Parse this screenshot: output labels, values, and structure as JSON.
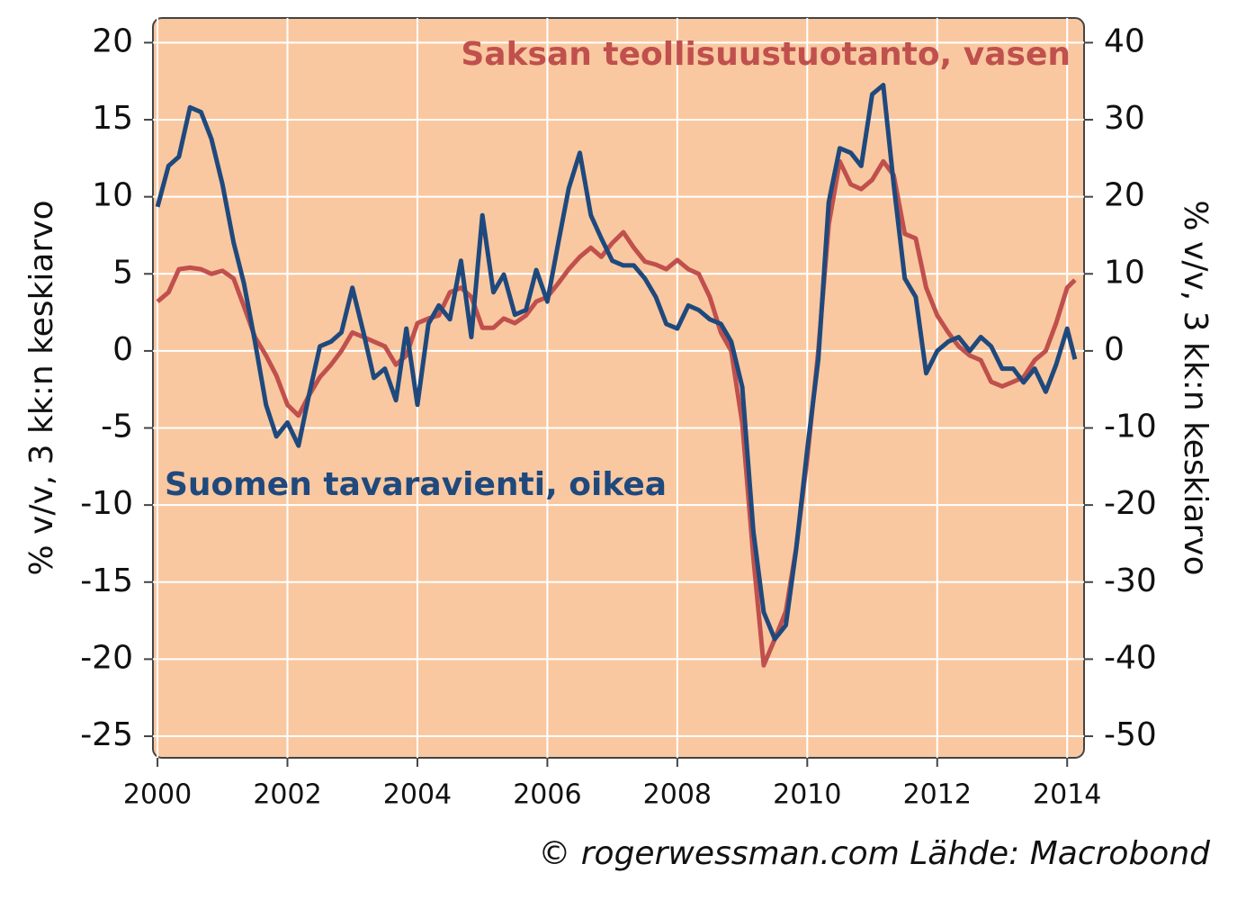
{
  "chart_data": {
    "type": "line",
    "y_label": "% v/v, 3 kk:n keskiarvo",
    "y2_label": "% v/v, 3 kk:n keskiarvo",
    "source": "© rogerwessman.com Lähde: Macrobond",
    "xlim": [
      1999.93,
      2014.26
    ],
    "xticks": [
      2000,
      2002,
      2004,
      2006,
      2008,
      2010,
      2012,
      2014
    ],
    "ylim": [
      -26.4,
      21.6
    ],
    "yticks": [
      20,
      15,
      10,
      5,
      0,
      -5,
      -10,
      -15,
      -20,
      -25
    ],
    "y2lim": [
      -52.8,
      43.2
    ],
    "y2ticks": [
      40,
      30,
      20,
      10,
      0,
      -10,
      -20,
      -30,
      -40,
      -50
    ],
    "grid": true,
    "background": "#f9c8a0",
    "x": [
      2000,
      2000.17,
      2000.33,
      2000.5,
      2000.67,
      2000.83,
      2001,
      2001.17,
      2001.33,
      2001.5,
      2001.67,
      2001.83,
      2002,
      2002.17,
      2002.33,
      2002.5,
      2002.67,
      2002.83,
      2003,
      2003.17,
      2003.33,
      2003.5,
      2003.67,
      2003.83,
      2004,
      2004.17,
      2004.33,
      2004.5,
      2004.67,
      2004.83,
      2005,
      2005.17,
      2005.33,
      2005.5,
      2005.67,
      2005.83,
      2006,
      2006.17,
      2006.33,
      2006.5,
      2006.67,
      2006.83,
      2007,
      2007.17,
      2007.33,
      2007.5,
      2007.67,
      2007.83,
      2008,
      2008.17,
      2008.33,
      2008.5,
      2008.67,
      2008.83,
      2009,
      2009.17,
      2009.33,
      2009.5,
      2009.67,
      2009.83,
      2010,
      2010.17,
      2010.33,
      2010.5,
      2010.67,
      2010.83,
      2011,
      2011.17,
      2011.33,
      2011.5,
      2011.67,
      2011.83,
      2012,
      2012.17,
      2012.33,
      2012.5,
      2012.67,
      2012.83,
      2013,
      2013.17,
      2013.33,
      2013.5,
      2013.67,
      2013.83,
      2014,
      2014.12
    ],
    "series": [
      {
        "name": "Saksan teollisuustuotanto, vasen",
        "color": "#c0504d",
        "axis": "y",
        "values": [
          3.2,
          3.8,
          5.3,
          5.4,
          5.3,
          5.0,
          5.2,
          4.7,
          2.9,
          0.9,
          -0.3,
          -1.6,
          -3.5,
          -4.2,
          -2.9,
          -1.7,
          -0.9,
          0.0,
          1.2,
          0.9,
          0.6,
          0.3,
          -0.9,
          -0.3,
          1.8,
          2.1,
          2.3,
          3.8,
          4.1,
          3.5,
          1.5,
          1.5,
          2.1,
          1.8,
          2.3,
          3.2,
          3.5,
          4.4,
          5.3,
          6.1,
          6.7,
          6.1,
          7.0,
          7.7,
          6.7,
          5.8,
          5.6,
          5.3,
          5.9,
          5.3,
          5.0,
          3.5,
          1.2,
          0.0,
          -4.7,
          -13.4,
          -20.4,
          -18.7,
          -16.9,
          -12.8,
          -7.0,
          0.0,
          8.2,
          12.3,
          10.8,
          10.5,
          11.1,
          12.3,
          11.4,
          7.6,
          7.3,
          4.1,
          2.3,
          1.2,
          0.3,
          -0.3,
          -0.6,
          -2.0,
          -2.3,
          -2.0,
          -1.7,
          -0.6,
          0.0,
          1.8,
          4.1,
          4.6
        ]
      },
      {
        "name": "Suomen tavaravienti, oikea",
        "color": "#1f497d",
        "axis": "y2",
        "values": [
          18.7,
          24.0,
          25.2,
          31.6,
          31.0,
          27.5,
          21.6,
          14.1,
          8.8,
          1.2,
          -7.0,
          -11.1,
          -9.3,
          -12.3,
          -5.8,
          0.6,
          1.2,
          2.4,
          8.2,
          2.4,
          -3.5,
          -2.3,
          -6.4,
          2.9,
          -7.0,
          3.5,
          5.9,
          4.1,
          11.7,
          1.8,
          17.6,
          7.6,
          9.9,
          4.7,
          5.3,
          10.5,
          6.4,
          14.1,
          21.1,
          25.7,
          17.6,
          14.6,
          11.7,
          11.1,
          11.1,
          9.4,
          7.0,
          3.5,
          2.9,
          5.9,
          5.3,
          4.1,
          3.5,
          1.2,
          -4.7,
          -23.4,
          -33.9,
          -37.4,
          -35.6,
          -25.7,
          -12.8,
          -1.1,
          19.3,
          26.3,
          25.7,
          24.0,
          33.3,
          34.5,
          21.6,
          9.4,
          7.0,
          -2.9,
          0.0,
          1.2,
          1.8,
          0.0,
          1.8,
          0.6,
          -2.3,
          -2.3,
          -4.1,
          -2.3,
          -5.3,
          -1.8,
          2.9,
          -1.1
        ]
      }
    ]
  }
}
